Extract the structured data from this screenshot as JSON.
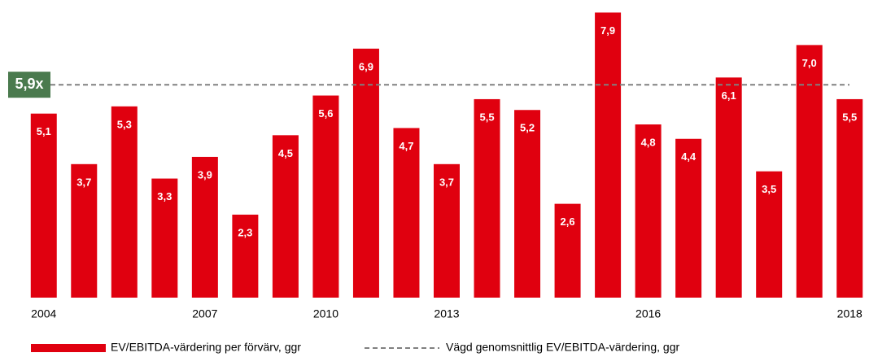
{
  "chart_data": {
    "type": "bar",
    "categories": [
      "2004",
      null,
      null,
      null,
      "2007",
      null,
      null,
      "2010",
      null,
      null,
      "2013",
      null,
      null,
      null,
      null,
      "2016",
      null,
      null,
      null,
      null,
      "2018"
    ],
    "series": [
      {
        "name": "EV/EBITDA-värdering per förvärv, ggr",
        "color": "#e0000f",
        "values": [
          5.1,
          3.7,
          5.3,
          3.3,
          3.9,
          2.3,
          4.5,
          5.6,
          6.9,
          4.7,
          3.7,
          5.5,
          5.2,
          2.6,
          7.9,
          4.8,
          4.4,
          6.1,
          3.5,
          7.0,
          5.5
        ],
        "value_labels": [
          "5,1",
          "3,7",
          "5,3",
          "3,3",
          "3,9",
          "2,3",
          "4,5",
          "5,6",
          "6,9",
          "4,7",
          "3,7",
          "5,5",
          "5,2",
          "2,6",
          "7,9",
          "4,8",
          "4,4",
          "6,1",
          "3,5",
          "7,0",
          "5,5"
        ]
      }
    ],
    "reference_line": {
      "name": "Vägd genomsnittlig EV/EBITDA-värdering, ggr",
      "value": 5.9,
      "label": "5,9x",
      "color": "#808080",
      "label_color": "#4a7a4e"
    },
    "ylim": [
      0,
      8
    ],
    "legend": "bottom-left"
  }
}
